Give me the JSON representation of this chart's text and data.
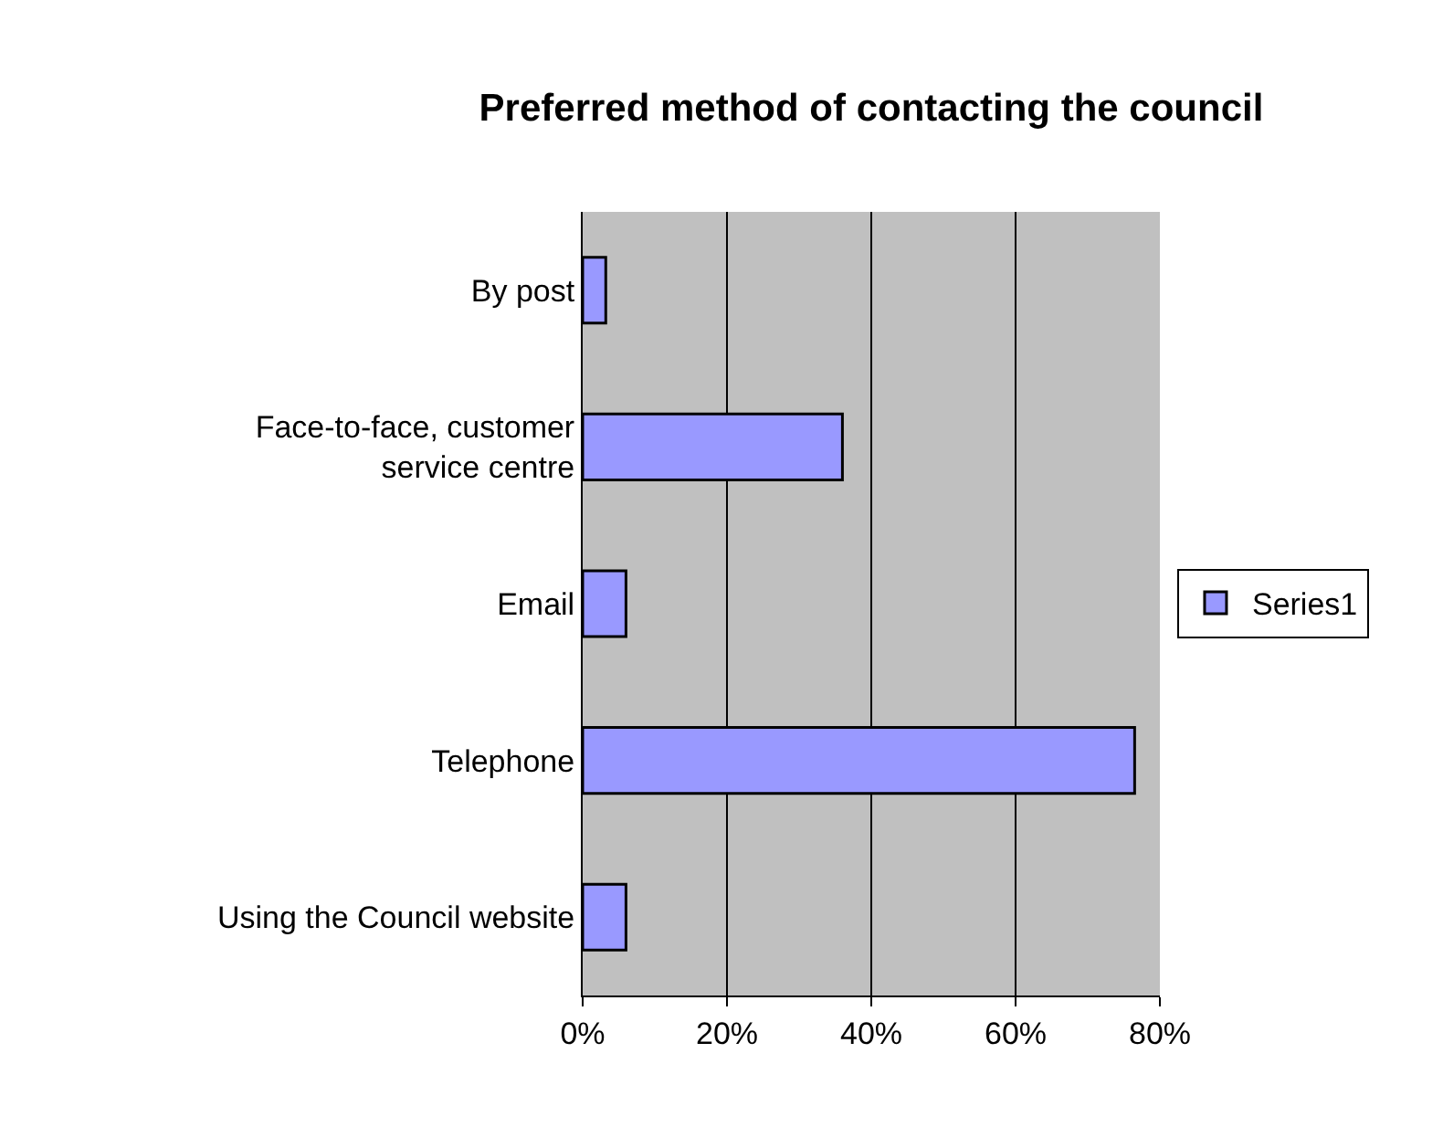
{
  "chart_data": {
    "type": "bar",
    "orientation": "horizontal",
    "title": "Preferred method of contacting the council",
    "categories": [
      "By post",
      "Face-to-face, customer service centre",
      "Email",
      "Telephone",
      "Using the Council website"
    ],
    "series": [
      {
        "name": "Series1",
        "color": "#9999ff",
        "values": [
          3.2,
          36,
          6,
          76.5,
          6
        ]
      }
    ],
    "xlim": [
      0,
      80
    ],
    "xticks": [
      {
        "value": 0,
        "label": "0%"
      },
      {
        "value": 20,
        "label": "20%"
      },
      {
        "value": 40,
        "label": "40%"
      },
      {
        "value": 60,
        "label": "60%"
      },
      {
        "value": 80,
        "label": "80%"
      }
    ],
    "grid": "x",
    "legend": "right"
  }
}
